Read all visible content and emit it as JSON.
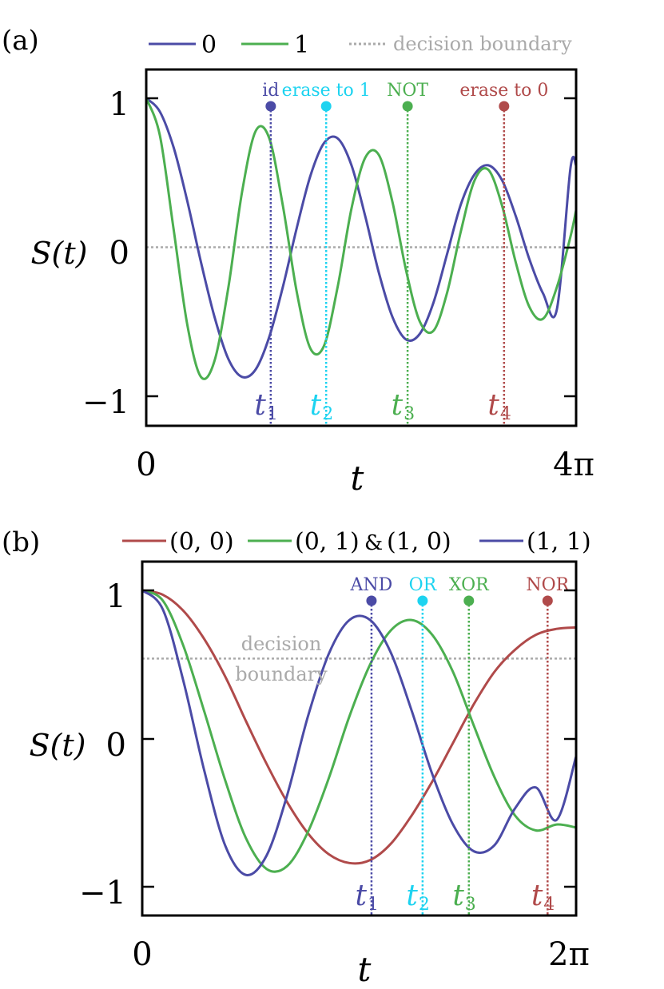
{
  "figure": {
    "width": 831,
    "height": 1238
  },
  "chart_data": [
    {
      "panel": "(a)",
      "type": "line",
      "xlabel": "t",
      "ylabel": "S(t)",
      "x_ticks": [
        "0",
        "4π"
      ],
      "y_ticks": [
        "−1",
        "0",
        "1"
      ],
      "xlim": [
        0,
        12.566
      ],
      "ylim": [
        -1.15,
        1.15
      ],
      "decision_boundary": {
        "y": 0,
        "label": "decision boundary",
        "color": "#aaaaaa"
      },
      "series": [
        {
          "name": "0",
          "color": "#4b4ba6",
          "x": [
            0,
            0.4,
            0.8,
            1.2,
            1.6,
            2.0,
            2.4,
            2.8,
            3.2,
            3.6,
            4.0,
            4.4,
            4.8,
            5.2,
            5.6,
            6.0,
            6.4,
            6.8,
            7.2,
            7.6,
            8.0,
            8.4,
            8.8,
            9.2,
            9.6,
            10.0,
            10.4,
            10.8,
            11.2,
            11.6,
            12.0,
            12.4,
            12.566
          ],
          "y": [
            1.0,
            0.91,
            0.67,
            0.31,
            -0.1,
            -0.47,
            -0.75,
            -0.87,
            -0.82,
            -0.6,
            -0.26,
            0.13,
            0.48,
            0.7,
            0.73,
            0.55,
            0.21,
            -0.17,
            -0.47,
            -0.62,
            -0.58,
            -0.37,
            -0.04,
            0.29,
            0.49,
            0.55,
            0.45,
            0.21,
            -0.08,
            -0.31,
            -0.42,
            0.53,
            0.55
          ]
        },
        {
          "name": "1",
          "color": "#4caf50",
          "x": [
            0,
            0.4,
            0.8,
            1.2,
            1.6,
            2.0,
            2.4,
            2.8,
            3.2,
            3.6,
            4.0,
            4.4,
            4.8,
            5.2,
            5.6,
            6.0,
            6.4,
            6.8,
            7.2,
            7.6,
            8.0,
            8.4,
            8.8,
            9.2,
            9.6,
            10.0,
            10.4,
            10.8,
            11.2,
            11.6,
            12.0,
            12.4,
            12.566
          ],
          "y": [
            1.0,
            0.75,
            0.12,
            -0.52,
            -0.87,
            -0.76,
            -0.27,
            0.37,
            0.78,
            0.73,
            0.27,
            -0.3,
            -0.68,
            -0.66,
            -0.26,
            0.26,
            0.6,
            0.62,
            0.3,
            -0.16,
            -0.5,
            -0.56,
            -0.3,
            0.11,
            0.45,
            0.52,
            0.28,
            -0.1,
            -0.4,
            -0.48,
            -0.27,
            0.07,
            0.25
          ]
        }
      ],
      "markers": [
        {
          "label": "id",
          "tlabel": "t",
          "sub": "1",
          "x": 3.64,
          "color": "#4b4ba6"
        },
        {
          "label": "erase to 1",
          "tlabel": "t",
          "sub": "2",
          "x": 5.26,
          "color": "#1dd3f0"
        },
        {
          "label": "NOT",
          "tlabel": "t",
          "sub": "3",
          "x": 7.64,
          "color": "#4caf50"
        },
        {
          "label": "erase to 0",
          "tlabel": "t",
          "sub": "4",
          "x": 10.46,
          "color": "#b04a4a"
        }
      ]
    },
    {
      "panel": "(b)",
      "type": "line",
      "xlabel": "t",
      "ylabel": "S(t)",
      "x_ticks": [
        "0",
        "2π"
      ],
      "y_ticks": [
        "−1",
        "0",
        "1"
      ],
      "xlim": [
        0,
        6.283
      ],
      "ylim": [
        -1.15,
        1.15
      ],
      "decision_boundary": {
        "y": 0.54,
        "label_line1": "decision",
        "label_line2": "boundary",
        "color": "#aaaaaa"
      },
      "legend_connector": "&",
      "series": [
        {
          "name": "(0, 0)",
          "color": "#b04a4a",
          "x": [
            0,
            0.3,
            0.6,
            0.9,
            1.2,
            1.5,
            1.8,
            2.1,
            2.4,
            2.7,
            3.0,
            3.3,
            3.6,
            3.9,
            4.2,
            4.5,
            4.8,
            5.1,
            5.4,
            5.7,
            6.0,
            6.283
          ],
          "y": [
            1.0,
            0.97,
            0.86,
            0.67,
            0.42,
            0.12,
            -0.17,
            -0.43,
            -0.64,
            -0.78,
            -0.84,
            -0.82,
            -0.71,
            -0.52,
            -0.29,
            -0.03,
            0.23,
            0.45,
            0.6,
            0.7,
            0.74,
            0.75
          ]
        },
        {
          "name": "(0, 1) & (1, 0)",
          "color": "#4caf50",
          "x": [
            0,
            0.3,
            0.6,
            0.9,
            1.2,
            1.5,
            1.8,
            2.1,
            2.4,
            2.7,
            3.0,
            3.3,
            3.6,
            3.9,
            4.2,
            4.5,
            4.8,
            5.1,
            5.4,
            5.7,
            6.0,
            6.283
          ],
          "y": [
            1.0,
            0.93,
            0.62,
            0.18,
            -0.28,
            -0.67,
            -0.88,
            -0.86,
            -0.63,
            -0.27,
            0.15,
            0.5,
            0.73,
            0.8,
            0.7,
            0.45,
            0.09,
            -0.26,
            -0.52,
            -0.62,
            -0.58,
            -0.6
          ]
        },
        {
          "name": "(1, 1)",
          "color": "#4b4ba6",
          "x": [
            0,
            0.3,
            0.6,
            0.9,
            1.2,
            1.5,
            1.8,
            2.1,
            2.4,
            2.7,
            3.0,
            3.3,
            3.6,
            3.9,
            4.2,
            4.5,
            4.8,
            5.1,
            5.4,
            5.7,
            6.0,
            6.283
          ],
          "y": [
            1.0,
            0.87,
            0.38,
            -0.22,
            -0.72,
            -0.92,
            -0.79,
            -0.38,
            0.15,
            0.57,
            0.8,
            0.8,
            0.58,
            0.19,
            -0.24,
            -0.58,
            -0.76,
            -0.72,
            -0.47,
            -0.33,
            -0.55,
            -0.12
          ]
        }
      ],
      "markers": [
        {
          "label": "AND",
          "tlabel": "t",
          "sub": "1",
          "x": 3.32,
          "color": "#4b4ba6"
        },
        {
          "label": "OR",
          "tlabel": "t",
          "sub": "2",
          "x": 4.06,
          "color": "#1dd3f0"
        },
        {
          "label": "XOR",
          "tlabel": "t",
          "sub": "3",
          "x": 4.73,
          "color": "#4caf50"
        },
        {
          "label": "NOR",
          "tlabel": "t",
          "sub": "4",
          "x": 5.87,
          "color": "#b04a4a"
        }
      ]
    }
  ]
}
